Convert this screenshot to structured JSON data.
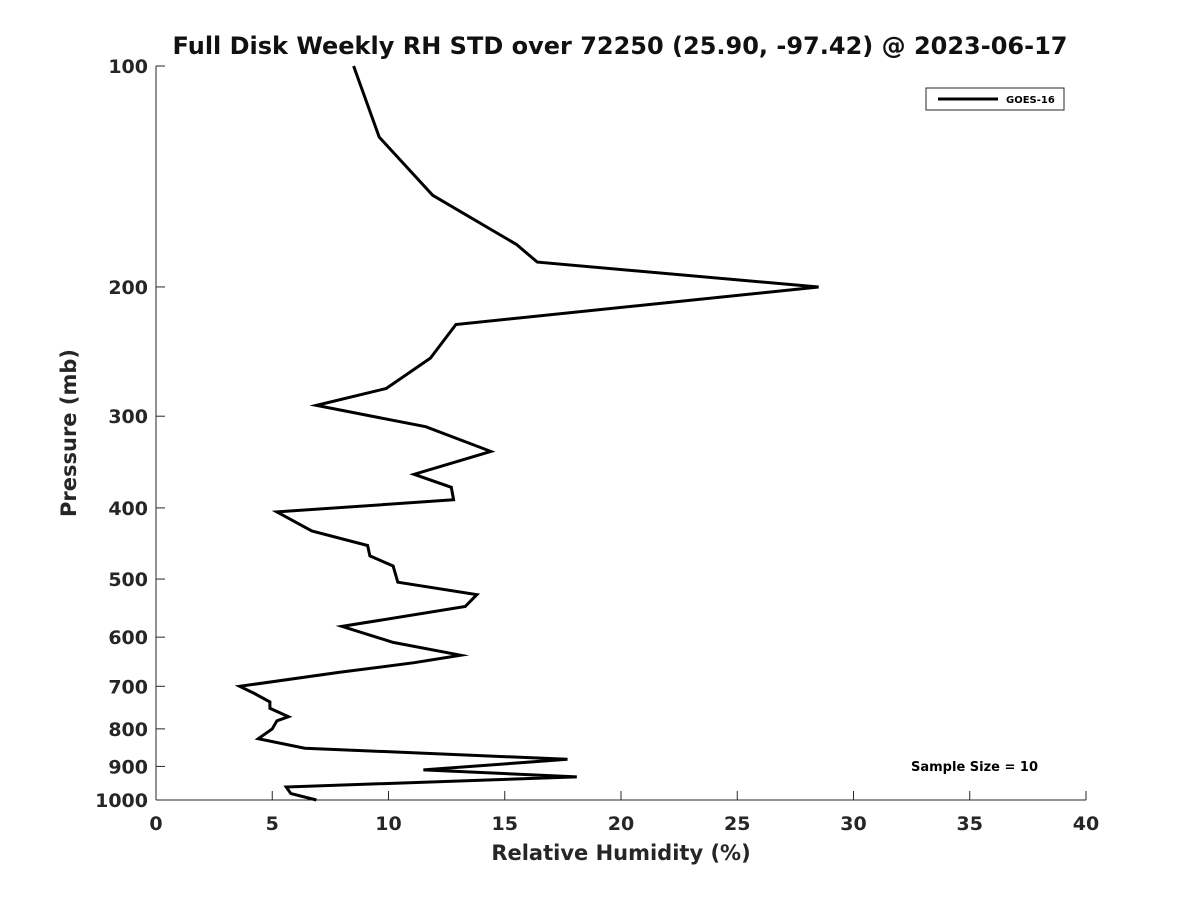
{
  "chart_data": {
    "type": "line",
    "title": "Full Disk Weekly RH STD over 72250 (25.90, -97.42) @ 2023-06-17",
    "xlabel": "Relative Humidity (%)",
    "ylabel": "Pressure (mb)",
    "xlim": [
      0,
      40
    ],
    "ylim": [
      100,
      1000
    ],
    "yscale": "log",
    "y_reversed": true,
    "grid": false,
    "x_ticks": [
      0,
      5,
      10,
      15,
      20,
      25,
      30,
      35,
      40
    ],
    "x_tick_labels": [
      "0",
      "5",
      "10",
      "15",
      "20",
      "25",
      "30",
      "35",
      "40"
    ],
    "y_ticks": [
      100,
      200,
      300,
      400,
      500,
      600,
      700,
      800,
      900,
      1000
    ],
    "y_tick_labels": [
      "100",
      "200",
      "300",
      "400",
      "500",
      "600",
      "700",
      "800",
      "900",
      "1000"
    ],
    "legend_position": "top-right",
    "series": [
      {
        "name": "GOES-16",
        "color": "#000000",
        "x": [
          8.5,
          9.6,
          11.9,
          15.5,
          16.4,
          28.5,
          12.9,
          11.8,
          9.9,
          6.9,
          11.6,
          14.4,
          11.1,
          12.7,
          12.8,
          5.2,
          6.7,
          9.1,
          9.2,
          10.2,
          10.4,
          13.8,
          13.3,
          8.0,
          10.2,
          13.1,
          11.1,
          7.9,
          3.6,
          4.2,
          4.9,
          4.9,
          5.7,
          5.2,
          5.0,
          4.4,
          6.4,
          17.7,
          11.5,
          18.1,
          5.6,
          5.8,
          6.9
        ],
        "y": [
          100,
          125,
          150,
          175,
          185,
          200,
          225,
          250,
          275,
          290,
          310,
          335,
          360,
          375,
          390,
          405,
          430,
          450,
          465,
          480,
          505,
          525,
          545,
          580,
          610,
          635,
          650,
          670,
          700,
          715,
          735,
          750,
          770,
          780,
          800,
          825,
          850,
          880,
          910,
          930,
          960,
          980,
          1000
        ]
      }
    ],
    "annotations": [
      {
        "text": "Sample Size = 10",
        "x": 32.5,
        "y": 900
      }
    ]
  }
}
